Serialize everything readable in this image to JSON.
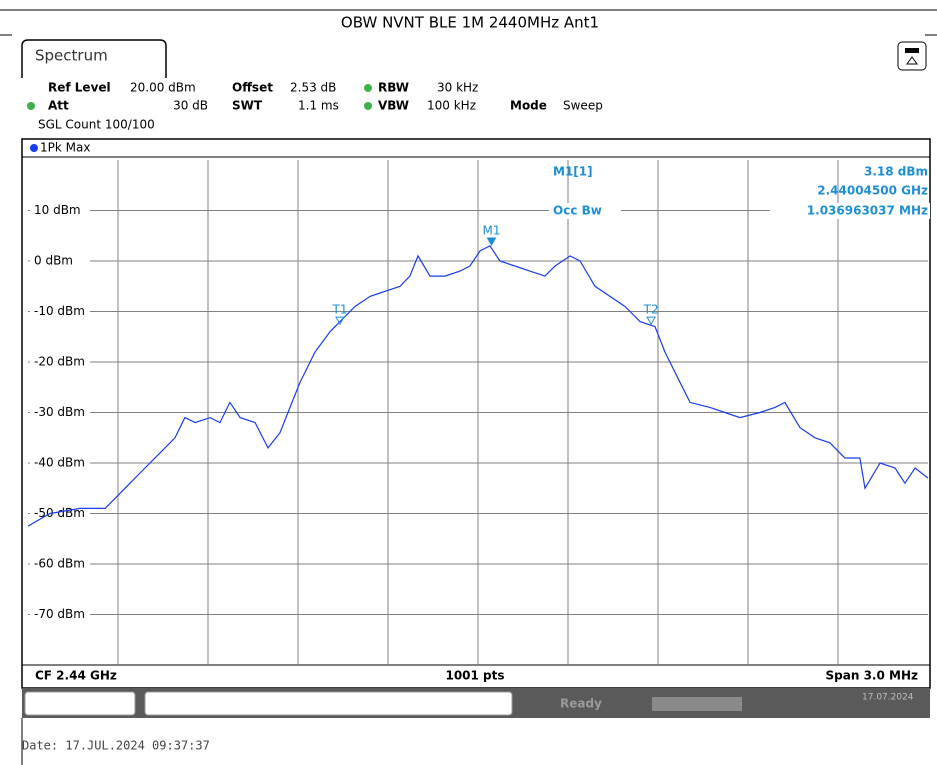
{
  "header": {
    "title": "OBW NVNT BLE 1M 2440MHz Ant1",
    "tab": "Spectrum"
  },
  "settings": {
    "ref_level_label": "Ref Level",
    "ref_level": "20.00 dBm",
    "offset_label": "Offset",
    "offset": "2.53 dB",
    "rbw_label": "RBW",
    "rbw": "30 kHz",
    "att_label": "Att",
    "att": "30 dB",
    "swt_label": "SWT",
    "swt": "1.1 ms",
    "vbw_label": "VBW",
    "vbw": "100 kHz",
    "mode_label": "Mode",
    "mode": "Sweep",
    "count": "SGL Count 100/100"
  },
  "trace_label": "1Pk Max",
  "marker_info": {
    "name": "M1[1]",
    "level": "3.18 dBm",
    "freq": "2.44004500 GHz",
    "occ_label": "Occ Bw",
    "occ": "1.036963037 MHz"
  },
  "footer": {
    "center": "CF 2.44 GHz",
    "points": "1001 pts",
    "span": "Span 3.0 MHz"
  },
  "status": {
    "state": "Ready",
    "date": "17.07.2024"
  },
  "date_line": "Date: 17.JUL.2024  09:37:37",
  "chart_data": {
    "type": "line",
    "xlim": [
      2438.5,
      2441.5
    ],
    "ylim": [
      -80,
      20
    ],
    "yticks": [
      {
        "value": 10,
        "label": "10 dBm"
      },
      {
        "value": 0,
        "label": "0 dBm"
      },
      {
        "value": -10,
        "label": "-10 dBm"
      },
      {
        "value": -20,
        "label": "-20 dBm"
      },
      {
        "value": -30,
        "label": "-30 dBm"
      },
      {
        "value": -40,
        "label": "-40 dBm"
      },
      {
        "value": -50,
        "label": "-50 dBm"
      },
      {
        "value": -60,
        "label": "-60 dBm"
      },
      {
        "value": -70,
        "label": "-70 dBm"
      }
    ],
    "grid": true,
    "x": [
      2438.5,
      2438.573,
      2438.673,
      2438.757,
      2438.79,
      2438.84,
      2438.89,
      2438.94,
      2438.99,
      2439.023,
      2439.057,
      2439.107,
      2439.14,
      2439.173,
      2439.207,
      2439.257,
      2439.3,
      2439.34,
      2439.38,
      2439.407,
      2439.457,
      2439.507,
      2439.54,
      2439.59,
      2439.64,
      2439.69,
      2439.74,
      2439.773,
      2439.8,
      2439.84,
      2439.89,
      2439.94,
      2439.973,
      2440.007,
      2440.04,
      2440.073,
      2440.123,
      2440.173,
      2440.223,
      2440.257,
      2440.307,
      2440.34,
      2440.39,
      2440.44,
      2440.49,
      2440.54,
      2440.59,
      2440.623,
      2440.673,
      2440.707,
      2440.773,
      2440.823,
      2440.873,
      2440.94,
      2440.99,
      2441.023,
      2441.073,
      2441.123,
      2441.173,
      2441.223,
      2441.273,
      2441.29,
      2441.34,
      2441.39,
      2441.423,
      2441.457,
      2441.5
    ],
    "series": [
      {
        "name": "1Pk Max",
        "color": "#1a3cf0",
        "values": [
          -52.5,
          -50,
          -49,
          -49,
          -47,
          -44,
          -41,
          -38,
          -35,
          -31,
          -32,
          -31,
          -32,
          -28,
          -31,
          -32,
          -37,
          -34,
          -28,
          -24,
          -18,
          -14,
          -12,
          -9,
          -7,
          -6,
          -5,
          -3,
          1,
          -3,
          -3,
          -2,
          -1,
          2,
          3,
          0,
          -1,
          -2,
          -3,
          -1,
          1,
          0,
          -5,
          -7,
          -9,
          -12,
          -13,
          -18,
          -24,
          -28,
          -29,
          -30,
          -31,
          -30,
          -29,
          -28,
          -33,
          -35,
          -36,
          -39,
          -39,
          -45,
          -40,
          -41,
          -44,
          -41,
          -43
        ]
      }
    ],
    "markers": [
      {
        "label": "M1",
        "x": 2440.045,
        "y": 3.18
      },
      {
        "label": "T1",
        "x": 2439.54,
        "y": -12.5
      },
      {
        "label": "T2",
        "x": 2440.577,
        "y": -12.5
      }
    ]
  }
}
